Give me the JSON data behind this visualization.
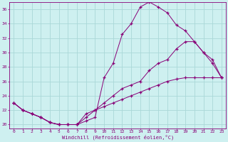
{
  "xlabel": "Windchill (Refroidissement éolien,°C)",
  "bg_color": "#cef0f0",
  "grid_color": "#aad8d8",
  "line_color": "#880077",
  "xlim": [
    -0.5,
    23.5
  ],
  "ylim": [
    19.5,
    37.0
  ],
  "yticks": [
    20,
    22,
    24,
    26,
    28,
    30,
    32,
    34,
    36
  ],
  "xticks": [
    0,
    1,
    2,
    3,
    4,
    5,
    6,
    7,
    8,
    9,
    10,
    11,
    12,
    13,
    14,
    15,
    16,
    17,
    18,
    19,
    20,
    21,
    22,
    23
  ],
  "line1_x": [
    0,
    1,
    2,
    3,
    4,
    5,
    6,
    7,
    8,
    9,
    10,
    11,
    12,
    13,
    14,
    15,
    16,
    17,
    18,
    19,
    20,
    21,
    22,
    23
  ],
  "line1_y": [
    23.0,
    22.0,
    21.5,
    21.0,
    20.3,
    20.0,
    20.0,
    20.0,
    20.5,
    21.0,
    26.5,
    28.5,
    32.5,
    34.0,
    36.3,
    37.0,
    36.3,
    35.5,
    33.8,
    33.0,
    31.5,
    30.0,
    28.5,
    26.5
  ],
  "line2_x": [
    0,
    1,
    2,
    3,
    4,
    5,
    6,
    7,
    8,
    9,
    10,
    11,
    12,
    13,
    14,
    15,
    16,
    17,
    18,
    19,
    20,
    21,
    22,
    23
  ],
  "line2_y": [
    23.0,
    22.0,
    21.5,
    21.0,
    20.3,
    20.0,
    20.0,
    20.0,
    21.5,
    22.0,
    22.5,
    23.0,
    23.5,
    24.0,
    24.5,
    25.0,
    25.5,
    26.0,
    26.3,
    26.5,
    26.5,
    26.5,
    26.5,
    26.5
  ],
  "line3_x": [
    0,
    1,
    2,
    3,
    4,
    5,
    6,
    7,
    8,
    9,
    10,
    11,
    12,
    13,
    14,
    15,
    16,
    17,
    18,
    19,
    20,
    21,
    22,
    23
  ],
  "line3_y": [
    23.0,
    22.0,
    21.5,
    21.0,
    20.3,
    20.0,
    20.0,
    20.0,
    21.0,
    22.0,
    23.0,
    24.0,
    25.0,
    25.5,
    26.0,
    27.5,
    28.5,
    29.0,
    30.5,
    31.5,
    31.5,
    30.0,
    29.0,
    26.5
  ]
}
